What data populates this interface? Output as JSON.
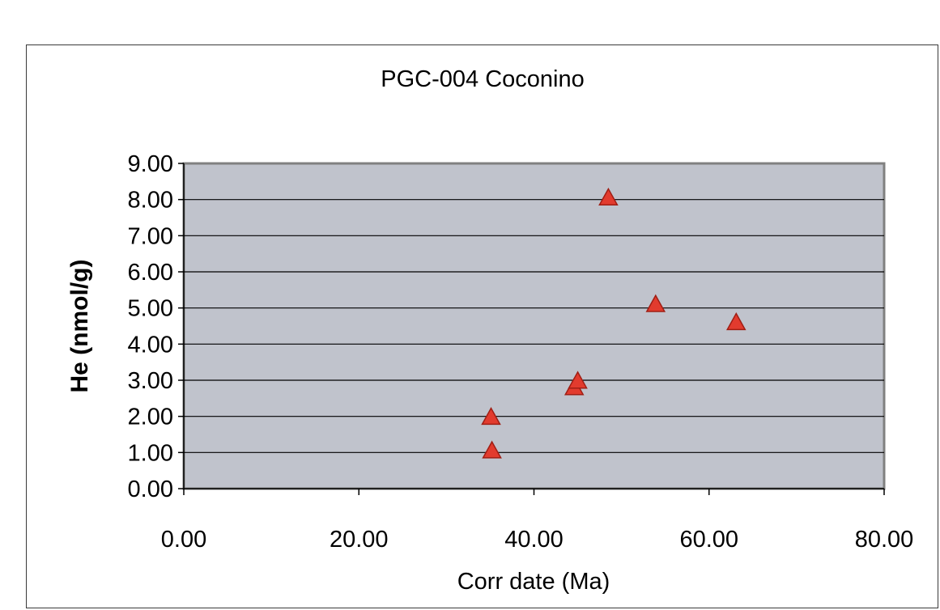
{
  "chart_data": {
    "type": "scatter",
    "title": "PGC-004 Coconino",
    "xlabel": "Corr date (Ma)",
    "ylabel": "He (nmol/g)",
    "xlim": [
      0,
      80
    ],
    "ylim": [
      0,
      9
    ],
    "x_ticks": [
      "0.00",
      "20.00",
      "40.00",
      "60.00",
      "80.00"
    ],
    "y_ticks": [
      "0.00",
      "1.00",
      "2.00",
      "3.00",
      "4.00",
      "5.00",
      "6.00",
      "7.00",
      "8.00",
      "9.00"
    ],
    "grid": "horizontal",
    "legend": "none",
    "colors": {
      "plot_background": "#c0c3cc",
      "marker_fill": "#e23b2e",
      "marker_edge": "#a01e14",
      "gridline": "#000000"
    },
    "marker": "triangle",
    "series": [
      {
        "points": [
          {
            "x": 35.2,
            "y": 1.05
          },
          {
            "x": 35.1,
            "y": 1.98
          },
          {
            "x": 44.6,
            "y": 2.8
          },
          {
            "x": 45.0,
            "y": 2.98
          },
          {
            "x": 48.5,
            "y": 8.05
          },
          {
            "x": 53.9,
            "y": 5.1
          },
          {
            "x": 63.1,
            "y": 4.6
          }
        ]
      }
    ]
  }
}
